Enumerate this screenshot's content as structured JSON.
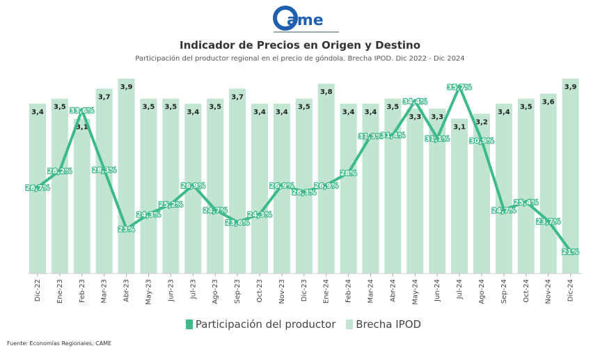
{
  "logo": {
    "text": "came",
    "tagline": "Confederación Argentina de la Mediana Empresa"
  },
  "colors": {
    "bar": "#c2e5d2",
    "line": "#3dba8a",
    "brand": "#1f5fb0"
  },
  "chart_data": {
    "type": "bar+line",
    "title": "Indicador de Precios en Origen y Destino",
    "subtitle": "Participación del productor regional en el precio de góndola. Brecha IPOD. Dic 2022 - Dic 2024",
    "categories": [
      "Dic-22",
      "Ene-23",
      "Feb-23",
      "Mar-23",
      "Abr-23",
      "May-23",
      "Jun-23",
      "Jul-23",
      "Ago-23",
      "Sep-23",
      "Oct-23",
      "Nov-23",
      "Dic-23",
      "Ene-24",
      "Feb-24",
      "Mar-24",
      "Abr-24",
      "May-24",
      "Jun-24",
      "Jul-24",
      "Ago-24",
      "Sep-24",
      "Oct-24",
      "Nov-24",
      "Dic-24"
    ],
    "series": [
      {
        "name": "Participación del productor",
        "type": "line",
        "axis": "right",
        "values": [
          26.7,
          28.2,
          33.6,
          28.3,
          23,
          24.3,
          25.2,
          26.9,
          24.7,
          23.6,
          24.3,
          26.9,
          26.3,
          26.9,
          28,
          31.3,
          31.4,
          34.4,
          31.1,
          35.7,
          30.9,
          24.7,
          25.4,
          23.7,
          21
        ],
        "labels": [
          "26,7%",
          "28,2%",
          "33,6%",
          "28,3%",
          "23%",
          "24,3%",
          "25,2%",
          "26,9%",
          "24,7%",
          "23,6%",
          "24,3%",
          "26,9%",
          "26,3%",
          "26,9%",
          "28%",
          "31,3%",
          "31,4%",
          "34,4%",
          "31,1%",
          "35,7%",
          "30,9%",
          "24,7%",
          "25,4%",
          "23,7%",
          "21%"
        ]
      },
      {
        "name": "Brecha IPOD",
        "type": "bar",
        "axis": "left",
        "values": [
          3.4,
          3.5,
          3.1,
          3.7,
          3.9,
          3.5,
          3.5,
          3.4,
          3.5,
          3.7,
          3.4,
          3.4,
          3.5,
          3.8,
          3.4,
          3.4,
          3.5,
          3.3,
          3.3,
          3.1,
          3.2,
          3.4,
          3.5,
          3.6,
          3.9
        ],
        "labels": [
          "3,4",
          "3,5",
          "3,1",
          "3,7",
          "3,9",
          "3,5",
          "3,5",
          "3,4",
          "3,5",
          "3,7",
          "3,4",
          "3,4",
          "3,5",
          "3,8",
          "3,4",
          "3,4",
          "3,5",
          "3,3",
          "3,3",
          "3,1",
          "3,2",
          "3,4",
          "3,5",
          "3,6",
          "3,9"
        ]
      }
    ],
    "ylim_left": [
      0,
      3.9
    ],
    "ylim_right": [
      19,
      36.4
    ],
    "grid": false,
    "legend": "bottom"
  },
  "source": "Fuente: Economías Regionales, CAME"
}
